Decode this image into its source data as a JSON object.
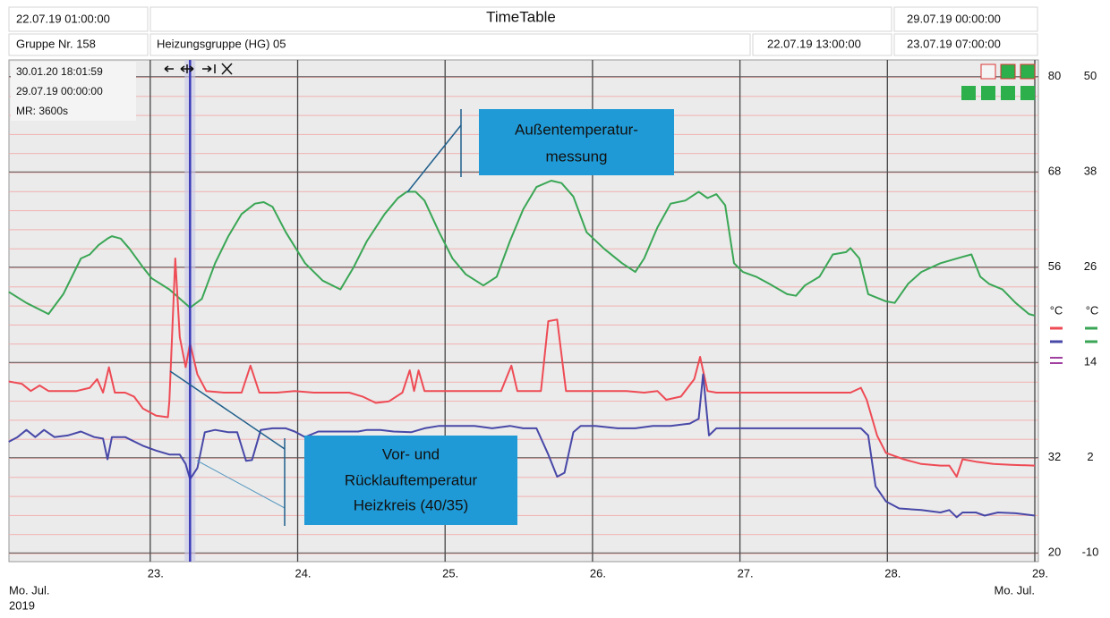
{
  "header": {
    "start": "22.07.19 01:00:00",
    "title": "TimeTable",
    "end": "29.07.19 00:00:00",
    "group": "Gruppe Nr. 158",
    "group_name": "Heizungsgruppe (HG) 05",
    "time_a": "22.07.19 13:00:00",
    "time_b": "23.07.19 07:00:00"
  },
  "info": [
    "30.01.20 18:01:59",
    "29.07.19 00:00:00",
    "MR: 3600s"
  ],
  "chart_data": {
    "type": "line",
    "y_label": "°C",
    "y2_label": "°C",
    "x_label_left": [
      "Mo. Jul.",
      "2019"
    ],
    "x_label_right": "Mo. Jul.",
    "xlim": [
      22.0417,
      29
    ],
    "xticks": [
      {
        "value": 23,
        "label": "23."
      },
      {
        "value": 24,
        "label": "24."
      },
      {
        "value": 25,
        "label": "25."
      },
      {
        "value": 26,
        "label": "26."
      },
      {
        "value": 27,
        "label": "27."
      },
      {
        "value": 28,
        "label": "28."
      },
      {
        "value": 29,
        "label": "29."
      }
    ],
    "ylim": [
      18.9,
      82
    ],
    "yticks": [
      20,
      32,
      56,
      68,
      80
    ],
    "y2lim": [
      -11.1,
      52
    ],
    "y2ticks": [
      -10,
      2,
      14,
      26,
      38,
      50
    ],
    "grid": true,
    "cursor_x": 23.27,
    "annotations": [
      {
        "lines": [
          "Außentemperatur-",
          "messung"
        ]
      },
      {
        "lines": [
          "Vor- und",
          "Rücklauftemperatur",
          "Heizkreis (40/35)"
        ]
      }
    ],
    "series": [
      {
        "color": "#3aa655",
        "axis": "y2",
        "x": [
          22.04,
          22.16,
          22.31,
          22.41,
          22.53,
          22.59,
          22.65,
          22.71,
          22.74,
          22.8,
          22.86,
          22.95,
          23.01,
          23.13,
          23.27,
          23.35,
          23.44,
          23.53,
          23.62,
          23.71,
          23.77,
          23.83,
          23.92,
          24.05,
          24.17,
          24.29,
          24.38,
          24.47,
          24.59,
          24.68,
          24.74,
          24.8,
          24.86,
          24.96,
          25.05,
          25.14,
          25.26,
          25.35,
          25.44,
          25.53,
          25.62,
          25.72,
          25.79,
          25.87,
          25.96,
          26.08,
          26.2,
          26.29,
          26.35,
          26.44,
          26.53,
          26.63,
          26.72,
          26.78,
          26.84,
          26.9,
          26.96,
          27.02,
          27.11,
          27.2,
          27.32,
          27.38,
          27.44,
          27.54,
          27.63,
          27.72,
          27.75,
          27.81,
          27.87,
          27.99,
          28.05,
          28.14,
          28.23,
          28.36,
          28.51,
          28.57,
          28.63,
          28.69,
          28.78,
          28.87,
          28.96,
          29.0
        ],
        "values": [
          22.9,
          21.5,
          20.1,
          22.6,
          27.1,
          27.6,
          28.8,
          29.6,
          29.9,
          29.6,
          28.3,
          26.0,
          24.6,
          23.2,
          20.9,
          22.0,
          26.5,
          29.9,
          32.7,
          34.0,
          34.2,
          33.6,
          30.4,
          26.5,
          24.3,
          23.2,
          26.0,
          29.3,
          32.7,
          34.7,
          35.5,
          35.5,
          34.4,
          30.4,
          27.1,
          25.1,
          23.7,
          24.8,
          29.3,
          33.3,
          36.1,
          36.9,
          36.6,
          34.9,
          30.4,
          28.3,
          26.5,
          25.4,
          27.1,
          31.0,
          34.0,
          34.4,
          35.5,
          34.7,
          35.2,
          33.8,
          26.5,
          25.4,
          24.8,
          23.9,
          22.6,
          22.4,
          23.7,
          24.8,
          27.6,
          27.9,
          28.4,
          27.1,
          22.6,
          21.7,
          21.5,
          23.9,
          25.4,
          26.5,
          27.3,
          27.6,
          24.8,
          23.9,
          23.2,
          21.5,
          20.1,
          19.9
        ]
      },
      {
        "color": "#ee4b55",
        "axis": "y",
        "x": [
          22.04,
          22.13,
          22.19,
          22.25,
          22.31,
          22.41,
          22.5,
          22.59,
          22.64,
          22.68,
          22.72,
          22.76,
          22.83,
          22.89,
          22.95,
          23.04,
          23.12,
          23.13,
          23.17,
          23.2,
          23.24,
          23.27,
          23.32,
          23.38,
          23.5,
          23.62,
          23.68,
          23.74,
          23.86,
          23.98,
          24.11,
          24.23,
          24.35,
          24.44,
          24.53,
          24.62,
          24.71,
          24.76,
          24.79,
          24.82,
          24.86,
          25.02,
          25.2,
          25.38,
          25.45,
          25.49,
          25.56,
          25.65,
          25.7,
          25.76,
          25.82,
          25.93,
          26.11,
          26.23,
          26.35,
          26.44,
          26.5,
          26.6,
          26.69,
          26.73,
          26.78,
          26.84,
          27.02,
          27.26,
          27.51,
          27.75,
          27.82,
          27.86,
          27.93,
          27.99,
          28.11,
          28.23,
          28.36,
          28.42,
          28.47,
          28.51,
          28.6,
          28.72,
          28.84,
          29.0
        ],
        "values": [
          41.6,
          41.3,
          40.4,
          41.1,
          40.4,
          40.4,
          40.4,
          40.8,
          41.9,
          40.2,
          43.4,
          40.2,
          40.2,
          39.7,
          38.2,
          37.3,
          37.1,
          39.1,
          57.1,
          47.2,
          43.4,
          46.4,
          42.5,
          40.4,
          40.2,
          40.2,
          43.6,
          40.2,
          40.2,
          40.4,
          40.2,
          40.2,
          40.2,
          39.7,
          38.9,
          39.1,
          40.2,
          43.0,
          40.4,
          43.0,
          40.4,
          40.4,
          40.4,
          40.4,
          43.6,
          40.4,
          40.4,
          40.4,
          49.2,
          49.4,
          40.4,
          40.4,
          40.4,
          40.4,
          40.2,
          40.4,
          39.3,
          39.7,
          41.9,
          44.7,
          40.4,
          40.2,
          40.2,
          40.2,
          40.2,
          40.2,
          40.8,
          39.3,
          34.8,
          32.6,
          31.8,
          31.2,
          31.0,
          31.0,
          29.6,
          31.8,
          31.5,
          31.2,
          31.1,
          31.0
        ]
      },
      {
        "color": "#4848a8",
        "axis": "y",
        "x": [
          22.04,
          22.1,
          22.16,
          22.22,
          22.28,
          22.35,
          22.44,
          22.53,
          22.62,
          22.68,
          22.71,
          22.74,
          22.83,
          22.95,
          23.04,
          23.13,
          23.2,
          23.24,
          23.27,
          23.32,
          23.37,
          23.44,
          23.53,
          23.59,
          23.65,
          23.69,
          23.75,
          23.83,
          23.92,
          23.98,
          24.05,
          24.14,
          24.29,
          24.41,
          24.47,
          24.56,
          24.65,
          24.77,
          24.86,
          24.96,
          25.08,
          25.2,
          25.32,
          25.44,
          25.53,
          25.62,
          25.7,
          25.76,
          25.81,
          25.87,
          25.92,
          26.02,
          26.17,
          26.29,
          26.41,
          26.53,
          26.66,
          26.72,
          26.75,
          26.79,
          26.84,
          27.02,
          27.26,
          27.51,
          27.75,
          27.82,
          27.87,
          27.92,
          27.99,
          28.08,
          28.23,
          28.36,
          28.42,
          28.47,
          28.51,
          28.6,
          28.66,
          28.75,
          28.87,
          29.0
        ],
        "values": [
          34.0,
          34.6,
          35.5,
          34.6,
          35.5,
          34.6,
          34.8,
          35.3,
          34.6,
          34.4,
          31.8,
          34.6,
          34.6,
          33.5,
          32.9,
          32.4,
          32.4,
          31.2,
          29.3,
          30.7,
          35.2,
          35.5,
          35.2,
          35.2,
          31.6,
          31.7,
          35.5,
          35.7,
          35.7,
          35.3,
          34.6,
          35.3,
          35.3,
          35.3,
          35.5,
          35.5,
          35.3,
          35.2,
          35.7,
          36.0,
          36.0,
          36.0,
          35.7,
          36.0,
          35.7,
          35.7,
          32.4,
          29.6,
          30.1,
          35.2,
          36.0,
          36.0,
          35.7,
          35.7,
          36.0,
          36.0,
          36.3,
          36.9,
          42.5,
          34.8,
          35.7,
          35.7,
          35.7,
          35.7,
          35.7,
          35.7,
          34.8,
          28.4,
          26.5,
          25.6,
          25.4,
          25.1,
          25.4,
          24.5,
          25.1,
          25.1,
          24.7,
          25.1,
          25.0,
          24.7
        ]
      }
    ]
  }
}
